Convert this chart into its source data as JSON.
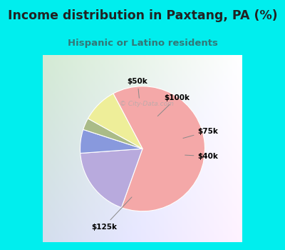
{
  "title": "Income distribution in Paxtang, PA (%)",
  "subtitle": "Hispanic or Latino residents",
  "slices": [
    {
      "label": "$125k",
      "value": 62,
      "color": "#F4A8A8"
    },
    {
      "label": "$100k",
      "value": 18,
      "color": "#B8AADD"
    },
    {
      "label": "$50k",
      "value": 6,
      "color": "#8899DD"
    },
    {
      "label": "$75k",
      "value": 3,
      "color": "#AABB88"
    },
    {
      "label": "$40k",
      "value": 9,
      "color": "#EEEE99"
    }
  ],
  "bg_cyan": "#00EEEE",
  "bg_chart_left": "#C8E8C8",
  "bg_chart_right": "#E8F4F4",
  "title_color": "#222222",
  "subtitle_color": "#337777",
  "watermark": "City-Data.com",
  "figsize": [
    4.0,
    3.5
  ],
  "dpi": 100
}
